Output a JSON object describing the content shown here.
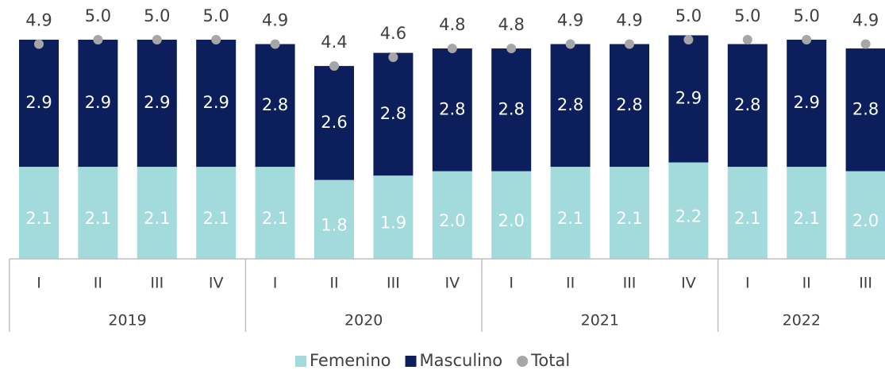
{
  "chart_data": {
    "type": "stacked_bar",
    "groups": [
      {
        "name": "2019",
        "categories": [
          "I",
          "II",
          "III",
          "IV"
        ]
      },
      {
        "name": "2020",
        "categories": [
          "I",
          "II",
          "III",
          "IV"
        ]
      },
      {
        "name": "2021",
        "categories": [
          "I",
          "II",
          "III",
          "IV"
        ]
      },
      {
        "name": "2022",
        "categories": [
          "I",
          "II",
          "III"
        ]
      }
    ],
    "series": [
      {
        "name": "Femenino",
        "color": "#a3dadb",
        "values": [
          2.1,
          2.1,
          2.1,
          2.1,
          2.1,
          1.8,
          1.9,
          2.0,
          2.0,
          2.1,
          2.1,
          2.2,
          2.1,
          2.1,
          2.0
        ],
        "value_labels": [
          "2.1",
          "2.1",
          "2.1",
          "2.1",
          "2.1",
          "1.8",
          "1.9",
          "2.0",
          "2.0",
          "2.1",
          "2.1",
          "2.2",
          "2.1",
          "2.1",
          "2.0"
        ]
      },
      {
        "name": "Masculino",
        "color": "#0c1f5c",
        "values": [
          2.9,
          2.9,
          2.9,
          2.9,
          2.8,
          2.6,
          2.8,
          2.8,
          2.8,
          2.8,
          2.8,
          2.9,
          2.8,
          2.9,
          2.8
        ],
        "value_labels": [
          "2.9",
          "2.9",
          "2.9",
          "2.9",
          "2.8",
          "2.6",
          "2.8",
          "2.8",
          "2.8",
          "2.8",
          "2.8",
          "2.9",
          "2.8",
          "2.9",
          "2.8"
        ]
      },
      {
        "name": "Total",
        "color": "#a6a6a6",
        "marker": "dot",
        "values": [
          4.9,
          5.0,
          5.0,
          5.0,
          4.9,
          4.4,
          4.6,
          4.8,
          4.8,
          4.9,
          4.9,
          5.0,
          5.0,
          5.0,
          4.9
        ],
        "value_labels": [
          "4.9",
          "5.0",
          "5.0",
          "5.0",
          "4.9",
          "4.4",
          "4.6",
          "4.8",
          "4.8",
          "4.9",
          "4.9",
          "5.0",
          "5.0",
          "5.0",
          "4.9"
        ]
      }
    ],
    "legend": "bottom"
  }
}
